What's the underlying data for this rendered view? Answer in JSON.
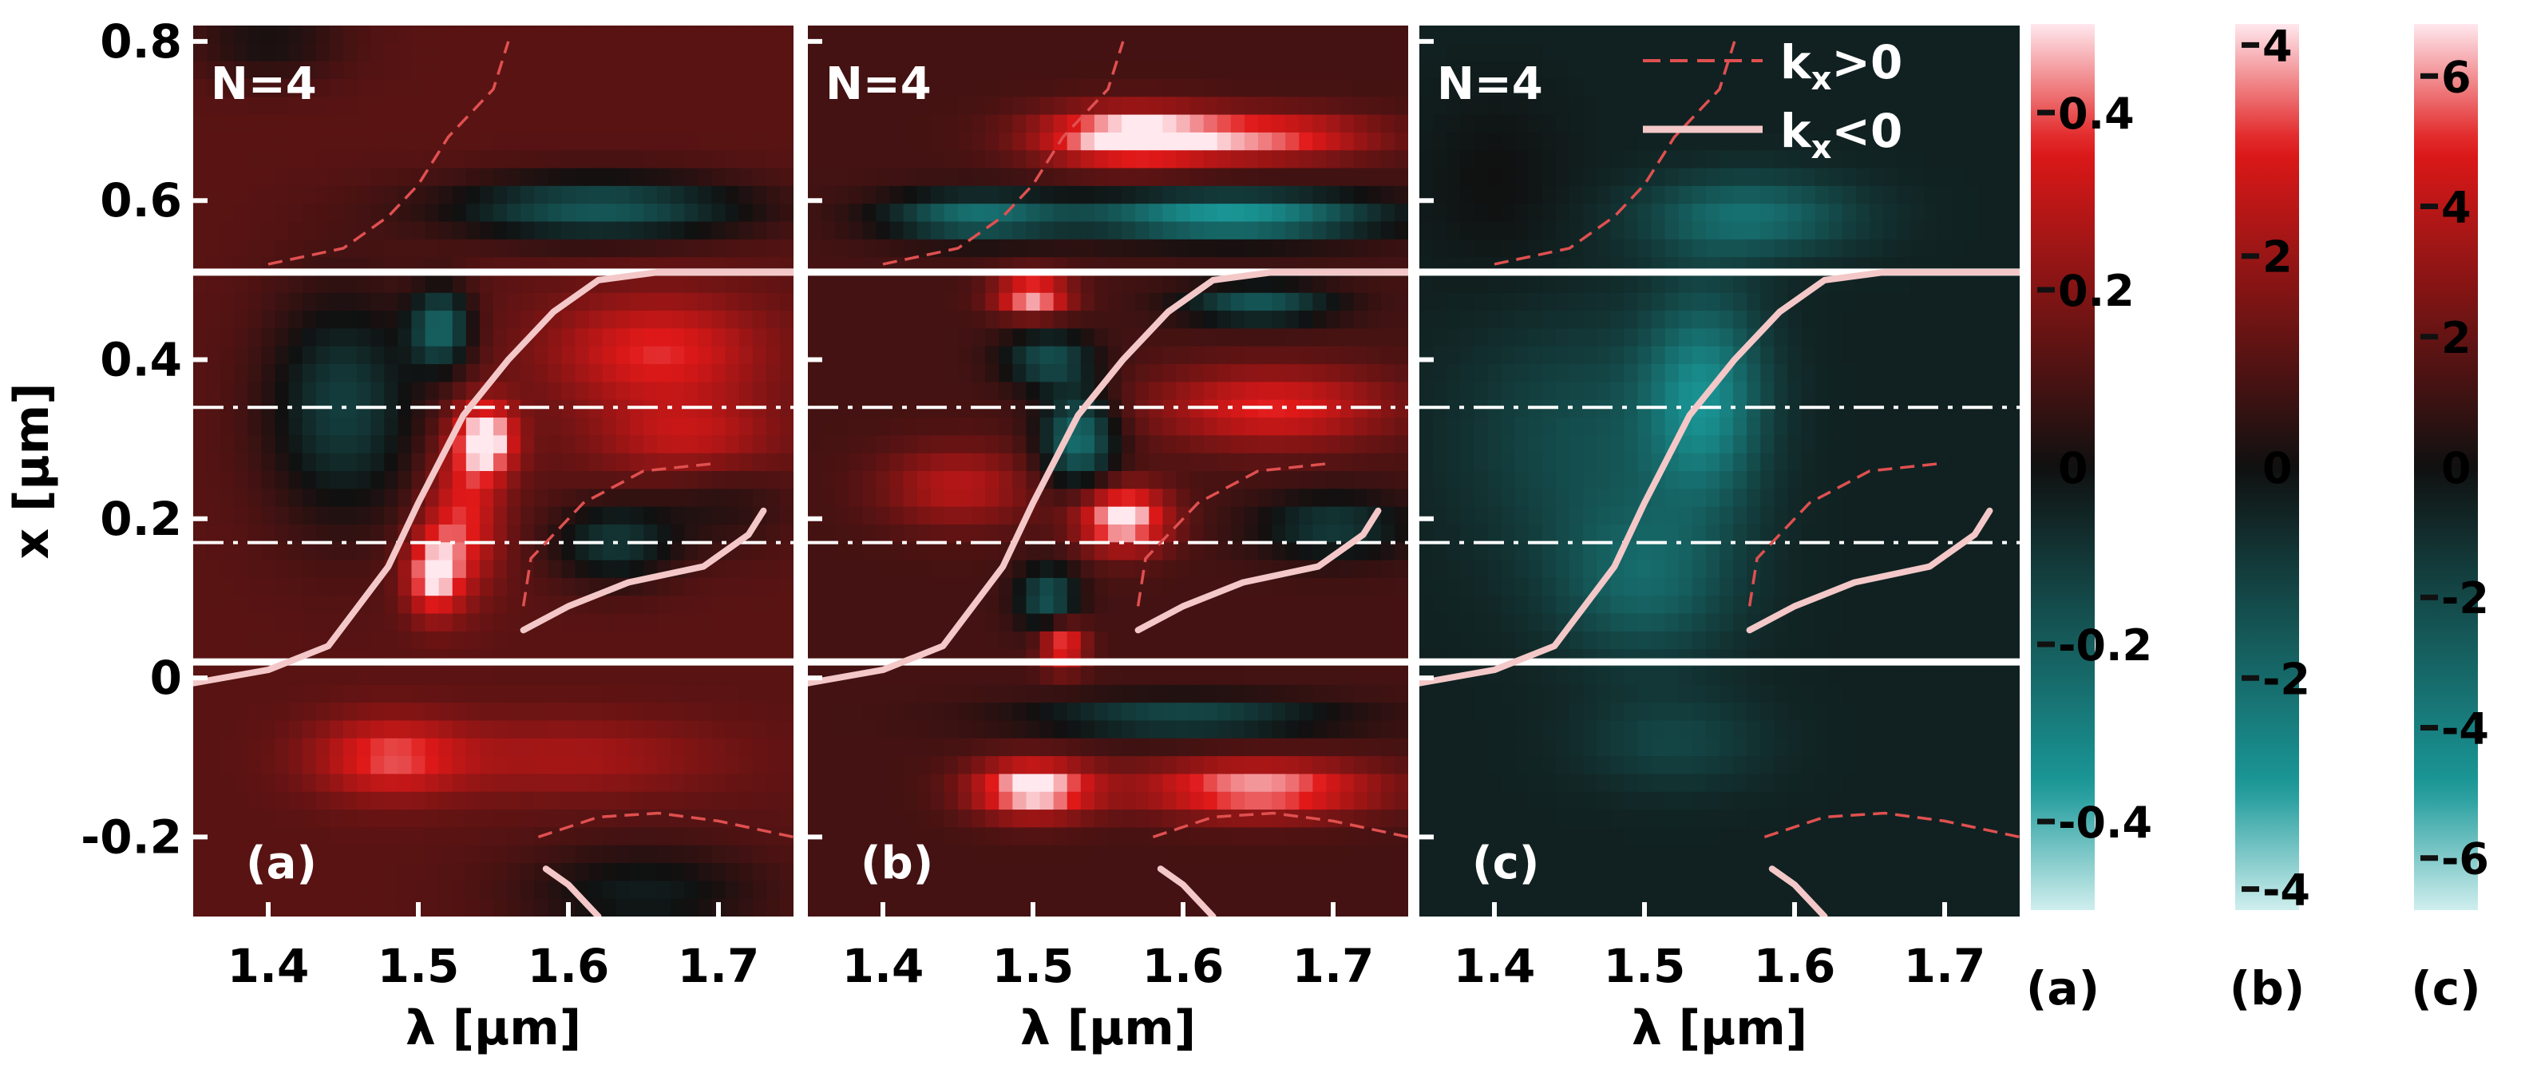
{
  "chart_data": [
    {
      "type": "heatmap",
      "panel": "(a)",
      "annotation_N": "N=4",
      "xlabel": "λ [μm]",
      "ylabel": "x [μm]",
      "xlim": [
        1.35,
        1.75
      ],
      "ylim": [
        -0.3,
        0.82
      ],
      "x_ticks": [
        "1.4",
        "1.5",
        "1.6",
        "1.7"
      ],
      "y_ticks": [
        "0.8",
        "0.6",
        "0.4",
        "0.2",
        "0",
        "-0.2"
      ],
      "colorbar": {
        "label": "(a)",
        "range": [
          -0.5,
          0.5
        ],
        "ticks": [
          "0.4",
          "0.2",
          "0",
          "-0.2",
          "-0.4"
        ]
      },
      "peak_amplitude_fraction": 0.9
    },
    {
      "type": "heatmap",
      "panel": "(b)",
      "annotation_N": "N=4",
      "xlabel": "λ [μm]",
      "xlim": [
        1.35,
        1.75
      ],
      "ylim": [
        -0.3,
        0.82
      ],
      "x_ticks": [
        "1.4",
        "1.5",
        "1.6",
        "1.7"
      ],
      "colorbar": {
        "label": "(b)",
        "range": [
          -4.2,
          4.2
        ],
        "ticks": [
          "4",
          "2",
          "0",
          "-2",
          "-4"
        ]
      },
      "peak_amplitude_fraction": 1.0
    },
    {
      "type": "heatmap",
      "panel": "(c)",
      "annotation_N": "N=4",
      "xlabel": "λ [μm]",
      "xlim": [
        1.35,
        1.75
      ],
      "ylim": [
        -0.3,
        0.82
      ],
      "x_ticks": [
        "1.4",
        "1.5",
        "1.6",
        "1.7"
      ],
      "colorbar": {
        "label": "(c)",
        "range": [
          -6.8,
          6.8
        ],
        "ticks": [
          "6",
          "4",
          "2",
          "0",
          "-2",
          "-4",
          "-6"
        ]
      },
      "peak_amplitude_fraction": 0.75
    }
  ],
  "legend": {
    "placement": "top-right of panel (c)",
    "entries": [
      {
        "label": "kx>0",
        "label_main": "k",
        "label_sub": "x",
        "label_rest": ">0",
        "style": "dashed",
        "color": "#e05050"
      },
      {
        "label": "kx<0",
        "label_main": "k",
        "label_sub": "x",
        "label_rest": "<0",
        "style": "solid",
        "color": "#f4c8c8"
      }
    ]
  },
  "overlays": {
    "solid_lines_x_um": [
      0.51,
      0.02
    ],
    "dashdot_lines_x_um": [
      0.34,
      0.17
    ],
    "kx_neg_curve_main": [
      [
        1.34,
        -0.01
      ],
      [
        1.4,
        0.01
      ],
      [
        1.44,
        0.04
      ],
      [
        1.48,
        0.14
      ],
      [
        1.5,
        0.22
      ],
      [
        1.53,
        0.33
      ],
      [
        1.56,
        0.4
      ],
      [
        1.59,
        0.46
      ],
      [
        1.62,
        0.5
      ],
      [
        1.66,
        0.51
      ],
      [
        1.75,
        0.51
      ]
    ],
    "kx_neg_curve_loop": [
      [
        1.57,
        0.06
      ],
      [
        1.6,
        0.09
      ],
      [
        1.64,
        0.12
      ],
      [
        1.69,
        0.14
      ],
      [
        1.72,
        0.18
      ],
      [
        1.73,
        0.21
      ]
    ],
    "kx_neg_curve_bottom": [
      [
        1.585,
        -0.24
      ],
      [
        1.6,
        -0.26
      ],
      [
        1.62,
        -0.3
      ]
    ],
    "kx_pos_curve_top": [
      [
        1.4,
        0.52
      ],
      [
        1.45,
        0.54
      ],
      [
        1.48,
        0.58
      ],
      [
        1.5,
        0.62
      ],
      [
        1.52,
        0.68
      ],
      [
        1.55,
        0.74
      ],
      [
        1.56,
        0.8
      ]
    ],
    "kx_pos_curve_loop": [
      [
        1.57,
        0.09
      ],
      [
        1.575,
        0.15
      ],
      [
        1.61,
        0.22
      ],
      [
        1.65,
        0.26
      ],
      [
        1.7,
        0.27
      ]
    ],
    "kx_pos_curve_bottom": [
      [
        1.58,
        -0.2
      ],
      [
        1.62,
        -0.175
      ],
      [
        1.66,
        -0.17
      ],
      [
        1.7,
        -0.18
      ],
      [
        1.75,
        -0.2
      ]
    ]
  },
  "colors": {
    "positive": "#e01818",
    "positive_peak": "#ffe8ee",
    "zero": "#101010",
    "negative": "#1a9898",
    "negative_peak": "#cfeeee",
    "kx_pos_line": "#e05050",
    "kx_neg_line": "#f4c8c8",
    "guide_line": "#ffffff"
  }
}
